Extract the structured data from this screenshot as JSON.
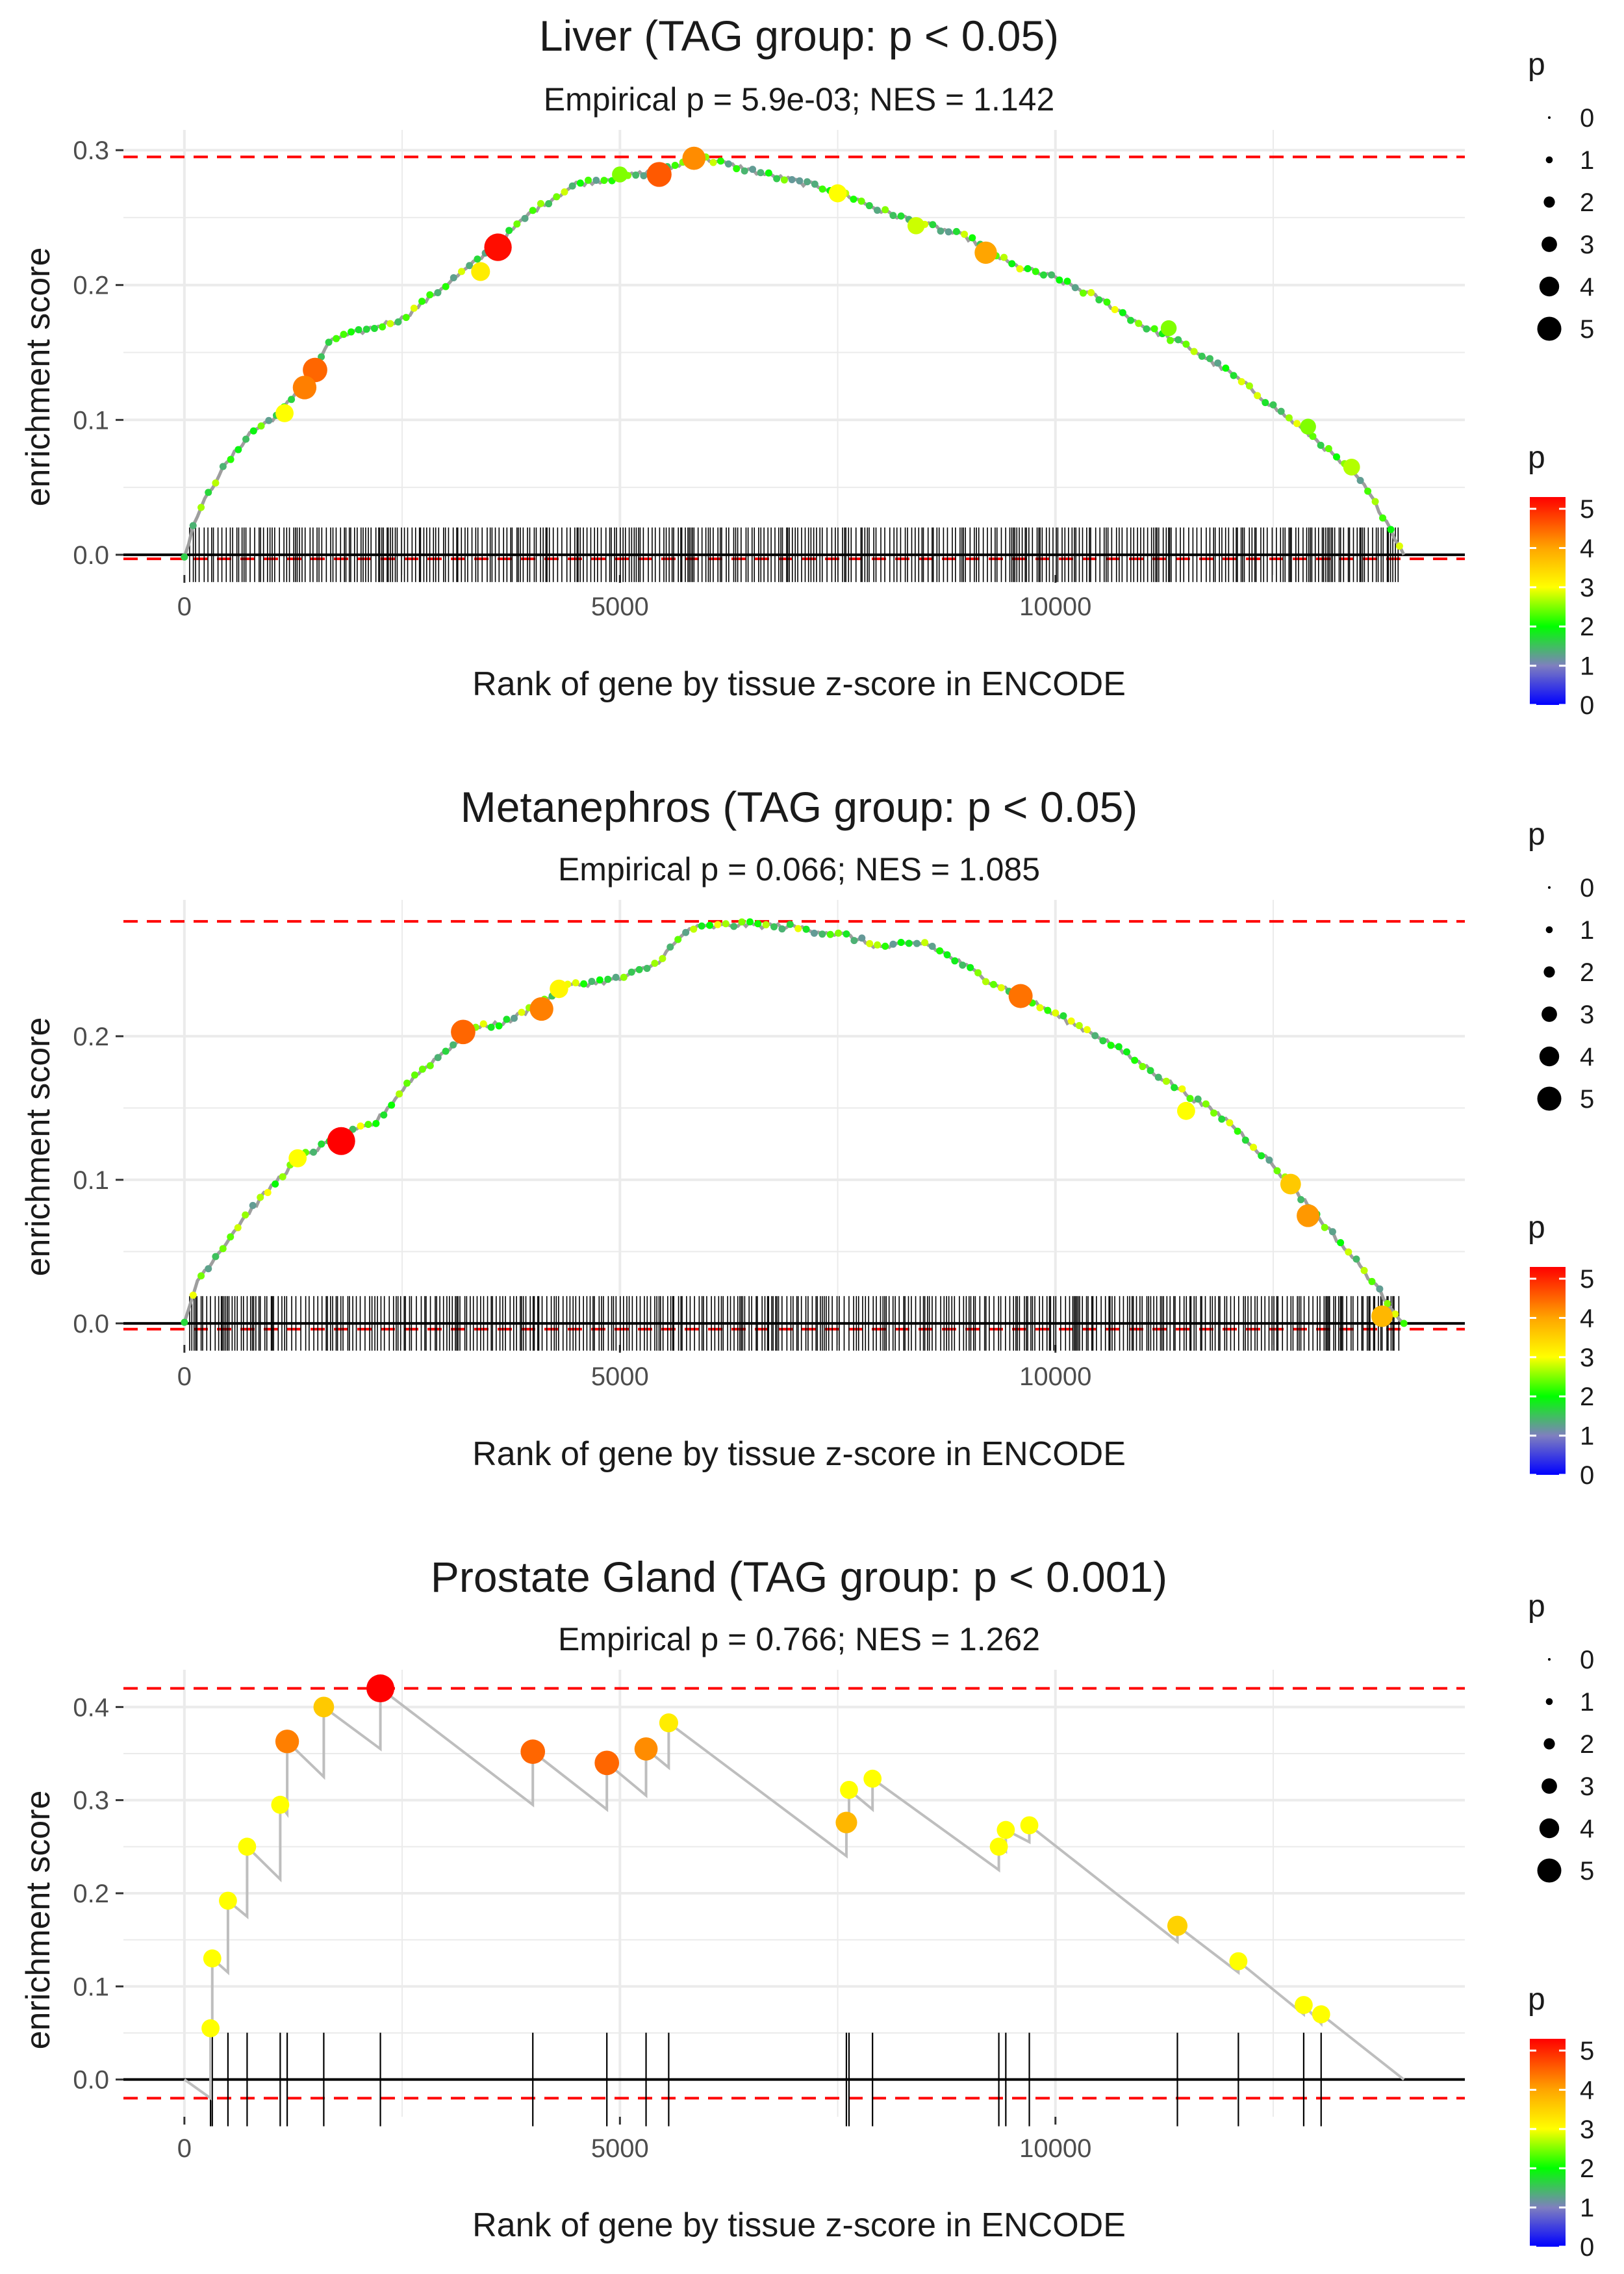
{
  "figure": {
    "background": "#ffffff"
  },
  "colors": {
    "grid": "#ebebeb",
    "zero_line": "#000000",
    "dashed": "#ff0000",
    "curve_gray": "#bebebe",
    "text": "#1a1a1a",
    "tick_text": "#4d4d4d",
    "colorbar": [
      "#0000ff",
      "#7f7fbf",
      "#00ff00",
      "#ffff00",
      "#ffa500",
      "#ff0000"
    ]
  },
  "chart_data": [
    {
      "type": "line",
      "title": "Liver (TAG group: p < 0.05)",
      "subtitle": "Empirical p = 5.9e-03; NES = 1.142",
      "xlabel": "Rank of gene by tissue z-score in ENCODE",
      "ylabel": "enrichment score",
      "xlim": [
        -700,
        14700
      ],
      "ylim": [
        -0.015,
        0.315
      ],
      "xticks": [
        0,
        5000,
        10000
      ],
      "xtick_labels": [
        "0",
        "5000",
        "10000"
      ],
      "yticks": [
        0,
        0.1,
        0.2,
        0.3
      ],
      "ytick_labels": [
        "0.0",
        "0.1",
        "0.2",
        "0.3"
      ],
      "es_max": 0.295,
      "es_min": -0.003,
      "dense": true,
      "n_genes": 14000,
      "curve": [
        [
          0,
          0
        ],
        [
          150,
          0.03
        ],
        [
          400,
          0.06
        ],
        [
          750,
          0.09
        ],
        [
          1100,
          0.105
        ],
        [
          1400,
          0.13
        ],
        [
          1700,
          0.16
        ],
        [
          2000,
          0.165
        ],
        [
          2500,
          0.175
        ],
        [
          3000,
          0.2
        ],
        [
          3500,
          0.225
        ],
        [
          4000,
          0.255
        ],
        [
          4500,
          0.275
        ],
        [
          5000,
          0.28
        ],
        [
          5500,
          0.285
        ],
        [
          5900,
          0.295
        ],
        [
          6200,
          0.29
        ],
        [
          6800,
          0.28
        ],
        [
          7500,
          0.27
        ],
        [
          8000,
          0.255
        ],
        [
          8500,
          0.245
        ],
        [
          9000,
          0.235
        ],
        [
          9500,
          0.215
        ],
        [
          10000,
          0.205
        ],
        [
          10500,
          0.19
        ],
        [
          11000,
          0.17
        ],
        [
          11500,
          0.155
        ],
        [
          12000,
          0.135
        ],
        [
          12500,
          0.11
        ],
        [
          13000,
          0.085
        ],
        [
          13500,
          0.055
        ],
        [
          13800,
          0.025
        ],
        [
          14000,
          0
        ]
      ],
      "points": [
        {
          "x": 3600,
          "y": 0.228,
          "p": 5.2
        },
        {
          "x": 5450,
          "y": 0.282,
          "p": 4.6
        },
        {
          "x": 5850,
          "y": 0.294,
          "p": 4.2
        },
        {
          "x": 1500,
          "y": 0.137,
          "p": 4.5
        },
        {
          "x": 1380,
          "y": 0.124,
          "p": 4.3
        },
        {
          "x": 9200,
          "y": 0.224,
          "p": 4.0
        },
        {
          "x": 3400,
          "y": 0.21,
          "p": 3.2
        },
        {
          "x": 1150,
          "y": 0.105,
          "p": 3.0
        },
        {
          "x": 7500,
          "y": 0.268,
          "p": 3.0
        },
        {
          "x": 8400,
          "y": 0.244,
          "p": 2.8
        },
        {
          "x": 11300,
          "y": 0.168,
          "p": 2.5
        },
        {
          "x": 12900,
          "y": 0.095,
          "p": 2.5
        },
        {
          "x": 13400,
          "y": 0.065,
          "p": 2.7
        },
        {
          "x": 5000,
          "y": 0.282,
          "p": 2.5
        }
      ],
      "size_legend": {
        "title": "p",
        "labels": [
          "0",
          "1",
          "2",
          "3",
          "4",
          "5"
        ]
      },
      "color_legend": {
        "title": "p",
        "labels": [
          "5",
          "4",
          "3",
          "2",
          "1",
          "0"
        ]
      }
    },
    {
      "type": "line",
      "title": "Metanephros (TAG group: p < 0.05)",
      "subtitle": "Empirical p = 0.066; NES = 1.085",
      "xlabel": "Rank of gene by tissue z-score in ENCODE",
      "ylabel": "enrichment score",
      "xlim": [
        -700,
        14700
      ],
      "ylim": [
        -0.015,
        0.295
      ],
      "xticks": [
        0,
        5000,
        10000
      ],
      "xtick_labels": [
        "0",
        "5000",
        "10000"
      ],
      "yticks": [
        0,
        0.1,
        0.2
      ],
      "ytick_labels": [
        "0.0",
        "0.1",
        "0.2"
      ],
      "es_max": 0.28,
      "es_min": -0.004,
      "dense": true,
      "n_genes": 14000,
      "curve": [
        [
          0,
          0
        ],
        [
          150,
          0.03
        ],
        [
          400,
          0.05
        ],
        [
          700,
          0.075
        ],
        [
          1000,
          0.095
        ],
        [
          1300,
          0.115
        ],
        [
          1800,
          0.13
        ],
        [
          2200,
          0.14
        ],
        [
          2600,
          0.17
        ],
        [
          3000,
          0.19
        ],
        [
          3300,
          0.205
        ],
        [
          3700,
          0.21
        ],
        [
          4000,
          0.22
        ],
        [
          4400,
          0.235
        ],
        [
          5000,
          0.24
        ],
        [
          5400,
          0.25
        ],
        [
          5800,
          0.275
        ],
        [
          6400,
          0.278
        ],
        [
          7000,
          0.276
        ],
        [
          7600,
          0.27
        ],
        [
          8000,
          0.262
        ],
        [
          8500,
          0.265
        ],
        [
          8800,
          0.255
        ],
        [
          9200,
          0.24
        ],
        [
          9600,
          0.228
        ],
        [
          10000,
          0.215
        ],
        [
          10500,
          0.2
        ],
        [
          11000,
          0.18
        ],
        [
          11500,
          0.16
        ],
        [
          12000,
          0.14
        ],
        [
          12500,
          0.11
        ],
        [
          13000,
          0.075
        ],
        [
          13500,
          0.04
        ],
        [
          13900,
          0.008
        ],
        [
          14000,
          0
        ]
      ],
      "points": [
        {
          "x": 1800,
          "y": 0.127,
          "p": 5.3
        },
        {
          "x": 3200,
          "y": 0.203,
          "p": 4.5
        },
        {
          "x": 4100,
          "y": 0.219,
          "p": 4.3
        },
        {
          "x": 9600,
          "y": 0.228,
          "p": 4.4
        },
        {
          "x": 12700,
          "y": 0.097,
          "p": 3.6
        },
        {
          "x": 12900,
          "y": 0.075,
          "p": 4.1
        },
        {
          "x": 1300,
          "y": 0.115,
          "p": 3.0
        },
        {
          "x": 4300,
          "y": 0.233,
          "p": 3.1
        },
        {
          "x": 11500,
          "y": 0.148,
          "p": 3.0
        },
        {
          "x": 13750,
          "y": 0.005,
          "p": 3.8
        }
      ],
      "size_legend": {
        "title": "p",
        "labels": [
          "0",
          "1",
          "2",
          "3",
          "4",
          "5"
        ]
      },
      "color_legend": {
        "title": "p",
        "labels": [
          "5",
          "4",
          "3",
          "2",
          "1",
          "0"
        ]
      }
    },
    {
      "type": "line",
      "title": "Prostate Gland (TAG group: p < 0.001)",
      "subtitle": "Empirical p = 0.766; NES = 1.262",
      "xlabel": "Rank of gene by tissue z-score in ENCODE",
      "ylabel": "enrichment score",
      "xlim": [
        -700,
        14700
      ],
      "ylim": [
        -0.04,
        0.44
      ],
      "xticks": [
        0,
        5000,
        10000
      ],
      "xtick_labels": [
        "0",
        "5000",
        "10000"
      ],
      "yticks": [
        0,
        0.1,
        0.2,
        0.3,
        0.4
      ],
      "ytick_labels": [
        "0.0",
        "0.1",
        "0.2",
        "0.3",
        "0.4"
      ],
      "es_max": 0.42,
      "es_min": -0.02,
      "dense": false,
      "n_genes": 14000,
      "curve": [
        [
          0,
          0
        ],
        [
          300,
          -0.02
        ],
        [
          300,
          0.055
        ],
        [
          320,
          0.05
        ],
        [
          320,
          0.13
        ],
        [
          500,
          0.115
        ],
        [
          500,
          0.192
        ],
        [
          720,
          0.175
        ],
        [
          720,
          0.25
        ],
        [
          1100,
          0.215
        ],
        [
          1100,
          0.295
        ],
        [
          1180,
          0.285
        ],
        [
          1180,
          0.363
        ],
        [
          1600,
          0.325
        ],
        [
          1600,
          0.4
        ],
        [
          2250,
          0.355
        ],
        [
          2250,
          0.42
        ],
        [
          4000,
          0.295
        ],
        [
          4000,
          0.352
        ],
        [
          4850,
          0.29
        ],
        [
          4850,
          0.34
        ],
        [
          5300,
          0.305
        ],
        [
          5300,
          0.355
        ],
        [
          5560,
          0.335
        ],
        [
          5560,
          0.383
        ],
        [
          7600,
          0.24
        ],
        [
          7600,
          0.276
        ],
        [
          7630,
          0.28
        ],
        [
          7630,
          0.311
        ],
        [
          7900,
          0.29
        ],
        [
          7900,
          0.323
        ],
        [
          9350,
          0.225
        ],
        [
          9350,
          0.25
        ],
        [
          9430,
          0.245
        ],
        [
          9430,
          0.268
        ],
        [
          9700,
          0.255
        ],
        [
          9700,
          0.273
        ],
        [
          11400,
          0.148
        ],
        [
          11400,
          0.165
        ],
        [
          12100,
          0.115
        ],
        [
          12100,
          0.127
        ],
        [
          12850,
          0.07
        ],
        [
          12850,
          0.08
        ],
        [
          13050,
          0.06
        ],
        [
          13050,
          0.07
        ],
        [
          14000,
          0
        ]
      ],
      "points": [
        {
          "x": 300,
          "y": 0.055,
          "p": 3.0
        },
        {
          "x": 320,
          "y": 0.13,
          "p": 3.0
        },
        {
          "x": 500,
          "y": 0.192,
          "p": 3.0
        },
        {
          "x": 720,
          "y": 0.25,
          "p": 3.0
        },
        {
          "x": 1100,
          "y": 0.295,
          "p": 3.0
        },
        {
          "x": 1180,
          "y": 0.363,
          "p": 4.3
        },
        {
          "x": 1600,
          "y": 0.4,
          "p": 3.6
        },
        {
          "x": 2250,
          "y": 0.42,
          "p": 5.3
        },
        {
          "x": 4000,
          "y": 0.352,
          "p": 4.5
        },
        {
          "x": 4850,
          "y": 0.34,
          "p": 4.5
        },
        {
          "x": 5300,
          "y": 0.355,
          "p": 4.2
        },
        {
          "x": 5560,
          "y": 0.383,
          "p": 3.2
        },
        {
          "x": 7600,
          "y": 0.276,
          "p": 3.8
        },
        {
          "x": 7630,
          "y": 0.311,
          "p": 3.0
        },
        {
          "x": 7900,
          "y": 0.323,
          "p": 3.0
        },
        {
          "x": 9350,
          "y": 0.25,
          "p": 3.0
        },
        {
          "x": 9430,
          "y": 0.268,
          "p": 3.0
        },
        {
          "x": 9700,
          "y": 0.273,
          "p": 3.0
        },
        {
          "x": 11400,
          "y": 0.165,
          "p": 3.5
        },
        {
          "x": 12100,
          "y": 0.127,
          "p": 3.0
        },
        {
          "x": 12850,
          "y": 0.08,
          "p": 3.0
        },
        {
          "x": 13050,
          "y": 0.07,
          "p": 3.0
        }
      ],
      "ticks": [
        300,
        320,
        500,
        720,
        1100,
        1180,
        1600,
        2250,
        4000,
        4850,
        5300,
        5560,
        7600,
        7630,
        7900,
        9350,
        9430,
        9700,
        11400,
        12100,
        12850,
        13050
      ],
      "size_legend": {
        "title": "p",
        "labels": [
          "0",
          "1",
          "2",
          "3",
          "4",
          "5"
        ]
      },
      "color_legend": {
        "title": "p",
        "labels": [
          "5",
          "4",
          "3",
          "2",
          "1",
          "0"
        ]
      }
    }
  ]
}
